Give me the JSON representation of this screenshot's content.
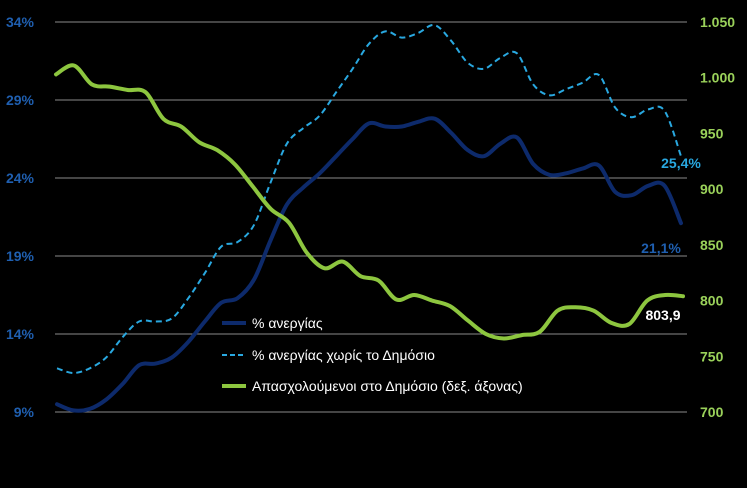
{
  "chart_data": {
    "type": "line",
    "title": "",
    "xlabel": "",
    "ylabel": "",
    "y_left": {
      "ticks": [
        "9%",
        "14%",
        "19%",
        "24%",
        "29%",
        "34%"
      ],
      "range": [
        9,
        34
      ]
    },
    "y_right": {
      "ticks": [
        "700",
        "750",
        "800",
        "850",
        "900",
        "950",
        "1.000",
        "1.050"
      ],
      "range": [
        700,
        1050
      ]
    },
    "grid": "horizontal",
    "legend_position": "bottom-center",
    "series": [
      {
        "name": "% ανεργίας",
        "axis": "left",
        "style": "solid",
        "color": "#0d2a6b",
        "end_label": "21,1%",
        "values": [
          9.5,
          9.1,
          9.2,
          9.8,
          10.8,
          12.0,
          12.1,
          12.5,
          13.5,
          14.8,
          16.0,
          16.3,
          17.5,
          20.0,
          22.3,
          23.4,
          24.3,
          25.4,
          26.5,
          27.5,
          27.3,
          27.3,
          27.6,
          27.8,
          26.9,
          25.8,
          25.4,
          26.2,
          26.6,
          24.9,
          24.2,
          24.3,
          24.6,
          24.8,
          23.1,
          22.9,
          23.5,
          23.5,
          21.1
        ]
      },
      {
        "name": "% ανεργίας χωρίς το Δημόσιο",
        "axis": "left",
        "style": "dashed",
        "color": "#29a8e0",
        "end_label": "25,4%",
        "values": [
          11.8,
          11.5,
          11.8,
          12.5,
          13.8,
          14.8,
          14.8,
          15.0,
          16.3,
          17.9,
          19.6,
          19.9,
          21.0,
          23.7,
          26.2,
          27.2,
          28.0,
          29.5,
          31.0,
          32.6,
          33.4,
          33.0,
          33.3,
          33.8,
          32.8,
          31.4,
          31.0,
          31.7,
          32.0,
          30.0,
          29.3,
          29.7,
          30.1,
          30.6,
          28.5,
          27.9,
          28.4,
          28.3,
          25.4
        ]
      },
      {
        "name": "Απασχολούμενοι στο Δημόσιο (δεξ. άξονας)",
        "axis": "right",
        "style": "solid",
        "color": "#8dc63f",
        "end_label": "803,9",
        "values": [
          1003,
          1011,
          994,
          992,
          989,
          987,
          963,
          956,
          942,
          935,
          922,
          902,
          882,
          870,
          843,
          829,
          835,
          822,
          818,
          801,
          805,
          800,
          795,
          782,
          770,
          766,
          769,
          772,
          791,
          794,
          791,
          780,
          779,
          800,
          805,
          803.9
        ]
      }
    ]
  }
}
